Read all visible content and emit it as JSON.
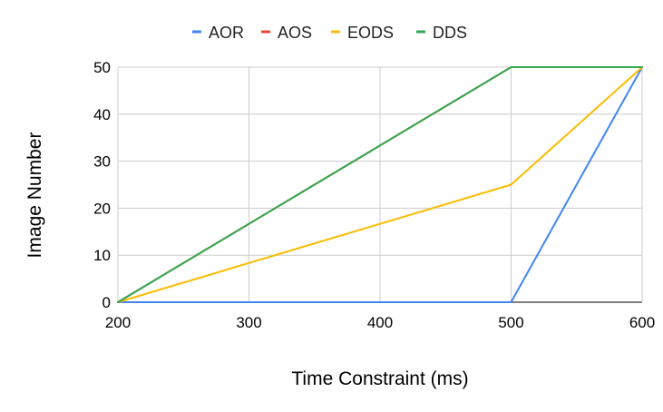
{
  "chart_data": {
    "type": "line",
    "title": "",
    "xlabel": "Time Constraint (ms)",
    "ylabel": "Image Number",
    "x": [
      200,
      500,
      600
    ],
    "xlim": [
      200,
      600
    ],
    "ylim": [
      0,
      50
    ],
    "x_ticks": [
      "200",
      "300",
      "400",
      "500",
      "600"
    ],
    "y_ticks": [
      "0",
      "10",
      "20",
      "30",
      "40",
      "50"
    ],
    "grid": true,
    "legend_position": "top",
    "series": [
      {
        "name": "AOR",
        "color": "#4285F4",
        "values": [
          0,
          0,
          50
        ]
      },
      {
        "name": "AOS",
        "color": "#EA4335",
        "values": [
          0,
          50,
          50
        ]
      },
      {
        "name": "EODS",
        "color": "#FBBC04",
        "values": [
          0,
          25,
          50
        ]
      },
      {
        "name": "DDS",
        "color": "#34A853",
        "values": [
          0,
          50,
          50
        ]
      }
    ]
  }
}
